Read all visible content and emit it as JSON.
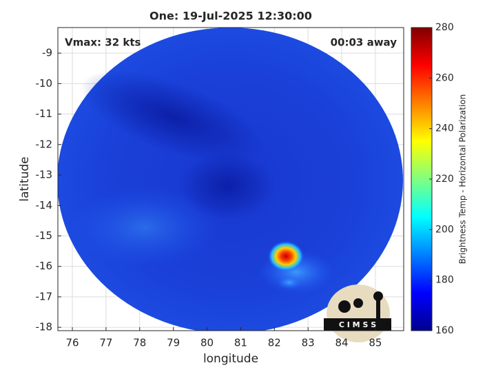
{
  "chart_data": {
    "type": "image",
    "title": "One: 19-Jul-2025 12:30:00",
    "x_label": "longitude",
    "y_label": "latitude",
    "xlim": [
      75.57,
      85.84
    ],
    "ylim": [
      -18.11,
      -8.16
    ],
    "xticks": [
      76,
      77,
      78,
      79,
      80,
      81,
      82,
      83,
      84,
      85
    ],
    "yticks": [
      -18,
      -17,
      -16,
      -15,
      -14,
      -13,
      -12,
      -11,
      -10,
      -9
    ],
    "grid": true,
    "annotations": [
      "Vmax: 32 kts",
      "00:03 away"
    ],
    "colorbar": {
      "label": "Brightness Temp - Horizontal Polarization",
      "lim": [
        160,
        280
      ],
      "ticks": [
        160,
        180,
        200,
        220,
        240,
        260,
        280
      ],
      "colormap": "jet"
    },
    "logo_text": "C I M S S"
  }
}
